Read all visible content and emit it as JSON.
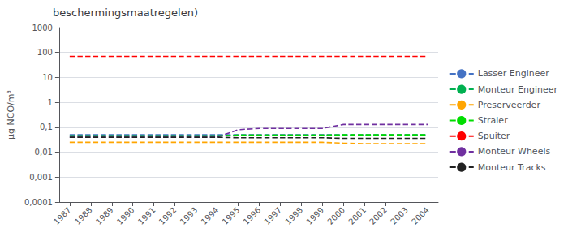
{
  "chart_data": {
    "type": "line",
    "title": "beschermingsmaatregelen)",
    "ylabel": "µg NCO/m³",
    "x": [
      1987,
      1988,
      1989,
      1990,
      1991,
      1992,
      1993,
      1994,
      1995,
      1996,
      1997,
      1998,
      1999,
      2000,
      2001,
      2002,
      2003,
      2004
    ],
    "xlim": [
      1986.5,
      2004.5
    ],
    "xticks": [
      1987,
      1988,
      1989,
      1990,
      1991,
      1992,
      1993,
      1994,
      1995,
      1996,
      1997,
      1998,
      1999,
      2000,
      2001,
      2002,
      2003,
      2004
    ],
    "ylim": [
      0.0001,
      1000
    ],
    "yticks": [
      {
        "value": 0.0001,
        "label": "0,0001"
      },
      {
        "value": 0.001,
        "label": "0,001"
      },
      {
        "value": 0.01,
        "label": "0,01"
      },
      {
        "value": 0.1,
        "label": "0,1"
      },
      1,
      10,
      100,
      1000
    ],
    "log": "y",
    "grid": true,
    "legend": "right",
    "line_style": "dashed",
    "series": [
      {
        "name": "Lasser Engineer",
        "color": "#4472c4",
        "values": [
          0.05,
          0.05,
          0.05,
          0.05,
          0.05,
          0.05,
          0.05,
          0.05,
          0.05,
          0.05,
          0.05,
          0.05,
          0.05,
          0.05,
          0.05,
          0.05,
          0.05,
          0.05
        ]
      },
      {
        "name": "Monteur Engineer",
        "color": "#00b050",
        "values": [
          0.045,
          0.045,
          0.045,
          0.045,
          0.045,
          0.045,
          0.045,
          0.045,
          0.048,
          0.048,
          0.048,
          0.048,
          0.048,
          0.048,
          0.048,
          0.048,
          0.048,
          0.048
        ]
      },
      {
        "name": "Preserveerder",
        "color": "#ffa500",
        "values": [
          0.025,
          0.025,
          0.025,
          0.025,
          0.025,
          0.025,
          0.025,
          0.025,
          0.025,
          0.025,
          0.025,
          0.025,
          0.025,
          0.023,
          0.022,
          0.022,
          0.022,
          0.022
        ]
      },
      {
        "name": "Straler",
        "color": "#00dd00",
        "values": [
          0.045,
          0.045,
          0.045,
          0.045,
          0.045,
          0.045,
          0.045,
          0.045,
          0.048,
          0.048,
          0.048,
          0.048,
          0.048,
          0.05,
          0.05,
          0.05,
          0.05,
          0.05
        ]
      },
      {
        "name": "Spuiter",
        "color": "#ff0000",
        "values": [
          70,
          70,
          70,
          70,
          70,
          70,
          70,
          70,
          70,
          70,
          70,
          70,
          70,
          70,
          70,
          70,
          70,
          70
        ]
      },
      {
        "name": "Monteur Wheels",
        "color": "#7030a0",
        "values": [
          0.04,
          0.04,
          0.04,
          0.04,
          0.04,
          0.04,
          0.04,
          0.04,
          0.08,
          0.09,
          0.09,
          0.09,
          0.09,
          0.13,
          0.13,
          0.13,
          0.13,
          0.13
        ]
      },
      {
        "name": "Monteur Tracks",
        "color": "#222222",
        "values": [
          0.04,
          0.04,
          0.04,
          0.04,
          0.04,
          0.04,
          0.04,
          0.04,
          0.038,
          0.038,
          0.038,
          0.038,
          0.038,
          0.036,
          0.036,
          0.036,
          0.036,
          0.036
        ]
      }
    ]
  }
}
